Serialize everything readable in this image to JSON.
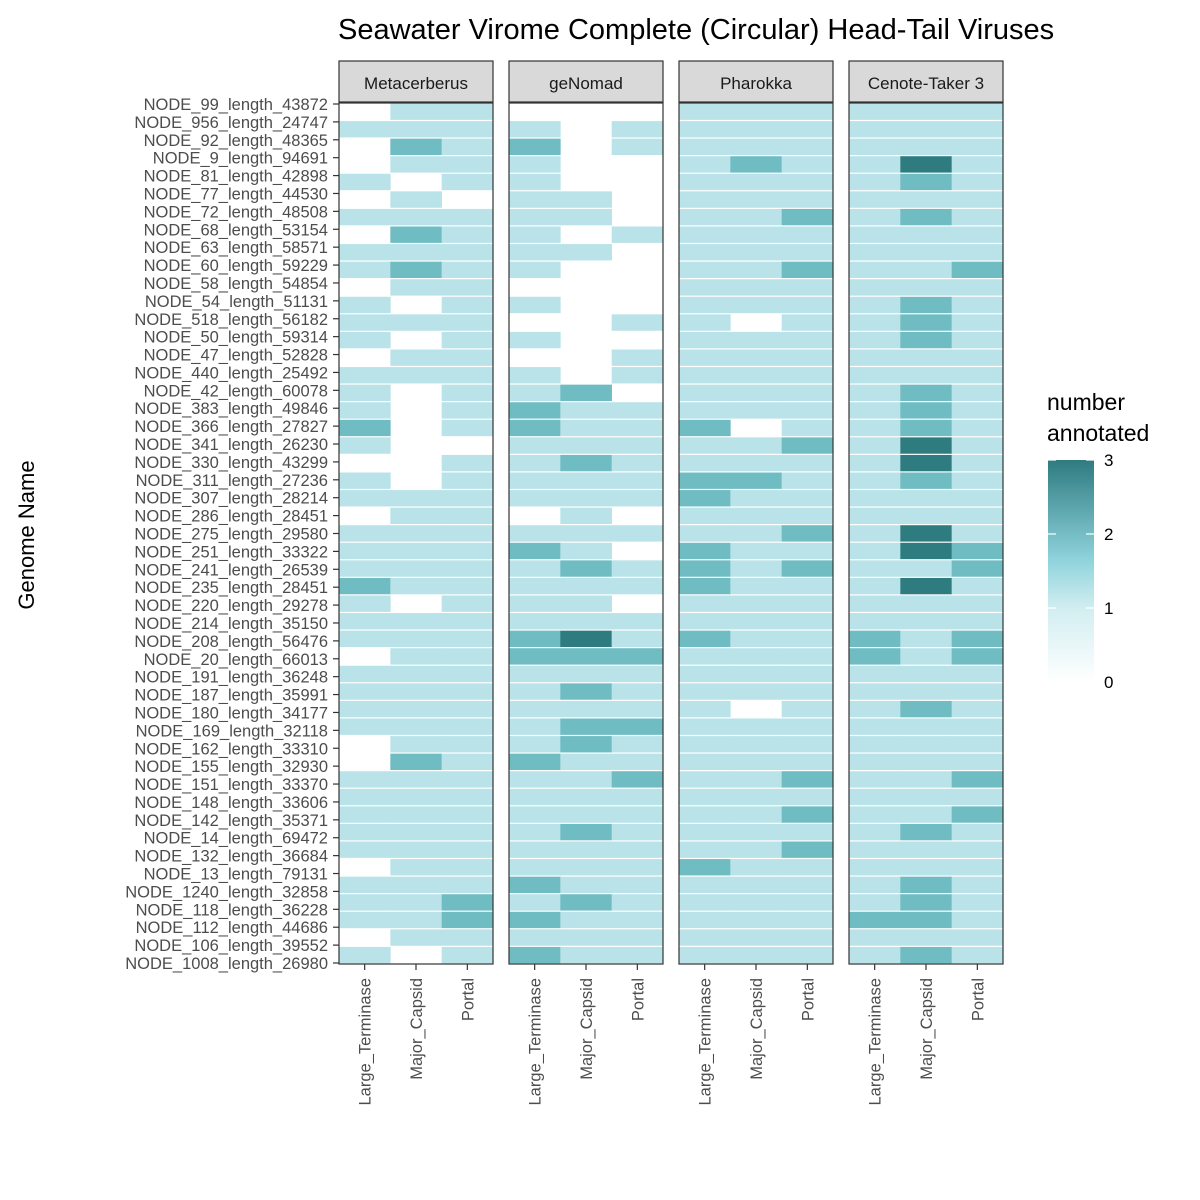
{
  "chart_data": {
    "type": "heatmap",
    "title": "Seawater Virome Complete (Circular) Head-Tail Viruses",
    "ylabel": "Genome Name",
    "xlabel": "",
    "panels": [
      "Metacerberus",
      "geNomad",
      "Pharokka",
      "Cenote-Taker 3"
    ],
    "columns": [
      "Large_Terminase",
      "Major_Capsid",
      "Portal"
    ],
    "rows": [
      "NODE_99_length_43872",
      "NODE_956_length_24747",
      "NODE_92_length_48365",
      "NODE_9_length_94691",
      "NODE_81_length_42898",
      "NODE_77_length_44530",
      "NODE_72_length_48508",
      "NODE_68_length_53154",
      "NODE_63_length_58571",
      "NODE_60_length_59229",
      "NODE_58_length_54854",
      "NODE_54_length_51131",
      "NODE_518_length_56182",
      "NODE_50_length_59314",
      "NODE_47_length_52828",
      "NODE_440_length_25492",
      "NODE_42_length_60078",
      "NODE_383_length_49846",
      "NODE_366_length_27827",
      "NODE_341_length_26230",
      "NODE_330_length_43299",
      "NODE_311_length_27236",
      "NODE_307_length_28214",
      "NODE_286_length_28451",
      "NODE_275_length_29580",
      "NODE_251_length_33322",
      "NODE_241_length_26539",
      "NODE_235_length_28451",
      "NODE_220_length_29278",
      "NODE_214_length_35150",
      "NODE_208_length_56476",
      "NODE_20_length_66013",
      "NODE_191_length_36248",
      "NODE_187_length_35991",
      "NODE_180_length_34177",
      "NODE_169_length_32118",
      "NODE_162_length_33310",
      "NODE_155_length_32930",
      "NODE_151_length_33370",
      "NODE_148_length_33606",
      "NODE_142_length_35371",
      "NODE_14_length_69472",
      "NODE_132_length_36684",
      "NODE_13_length_79131",
      "NODE_1240_length_32858",
      "NODE_118_length_36228",
      "NODE_112_length_44686",
      "NODE_106_length_39552",
      "NODE_1008_length_26980"
    ],
    "legend": {
      "title": "number annotated",
      "ticks": [
        0,
        1,
        2,
        3
      ],
      "low_color": "#ffffff",
      "mid_color": "#a6dce3",
      "high_color": "#2e7b80"
    },
    "values": {
      "Metacerberus": {
        "Large_Terminase": [
          0,
          1,
          0,
          0,
          1,
          0,
          1,
          0,
          1,
          1,
          0,
          1,
          1,
          1,
          0,
          1,
          1,
          1,
          2,
          1,
          0,
          1,
          1,
          0,
          1,
          1,
          1,
          2,
          1,
          1,
          1,
          0,
          1,
          1,
          1,
          1,
          0,
          0,
          1,
          1,
          1,
          1,
          1,
          0,
          1,
          1,
          1,
          0,
          1
        ],
        "Major_Capsid": [
          1,
          1,
          2,
          1,
          0,
          1,
          1,
          2,
          1,
          2,
          1,
          0,
          1,
          0,
          1,
          1,
          0,
          0,
          0,
          0,
          0,
          0,
          1,
          1,
          1,
          1,
          1,
          1,
          0,
          1,
          1,
          1,
          1,
          1,
          1,
          1,
          1,
          2,
          1,
          1,
          1,
          1,
          1,
          1,
          1,
          1,
          1,
          1,
          0
        ],
        "Portal": [
          1,
          1,
          1,
          1,
          1,
          0,
          1,
          1,
          1,
          1,
          1,
          1,
          1,
          1,
          1,
          1,
          1,
          1,
          1,
          0,
          1,
          1,
          1,
          1,
          1,
          1,
          1,
          1,
          1,
          1,
          1,
          1,
          1,
          1,
          1,
          1,
          1,
          1,
          1,
          1,
          1,
          1,
          1,
          1,
          1,
          2,
          2,
          1,
          1
        ]
      },
      "geNomad": {
        "Large_Terminase": [
          0,
          1,
          2,
          1,
          1,
          1,
          1,
          1,
          1,
          1,
          0,
          1,
          0,
          1,
          0,
          1,
          1,
          2,
          2,
          1,
          1,
          1,
          1,
          0,
          1,
          2,
          1,
          1,
          1,
          1,
          2,
          2,
          1,
          1,
          1,
          1,
          1,
          2,
          1,
          1,
          1,
          1,
          1,
          1,
          2,
          1,
          2,
          1,
          2
        ],
        "Major_Capsid": [
          0,
          0,
          0,
          0,
          0,
          1,
          1,
          0,
          1,
          0,
          0,
          0,
          0,
          0,
          0,
          0,
          2,
          1,
          1,
          1,
          2,
          1,
          1,
          1,
          1,
          1,
          2,
          1,
          1,
          1,
          3,
          2,
          1,
          2,
          1,
          2,
          2,
          1,
          1,
          1,
          1,
          2,
          1,
          1,
          1,
          2,
          1,
          1,
          1
        ],
        "Portal": [
          0,
          1,
          1,
          0,
          0,
          0,
          0,
          1,
          0,
          0,
          0,
          0,
          1,
          0,
          1,
          1,
          0,
          1,
          1,
          1,
          1,
          1,
          1,
          0,
          1,
          0,
          1,
          1,
          0,
          1,
          1,
          2,
          1,
          1,
          1,
          2,
          1,
          1,
          2,
          1,
          1,
          1,
          1,
          1,
          1,
          1,
          1,
          1,
          1
        ]
      },
      "Pharokka": {
        "Large_Terminase": [
          1,
          1,
          1,
          1,
          1,
          1,
          1,
          1,
          1,
          1,
          1,
          1,
          1,
          1,
          1,
          1,
          1,
          1,
          2,
          1,
          1,
          2,
          2,
          1,
          1,
          2,
          2,
          2,
          1,
          1,
          2,
          1,
          1,
          1,
          1,
          1,
          1,
          1,
          1,
          1,
          1,
          1,
          1,
          2,
          1,
          1,
          1,
          1,
          1
        ],
        "Major_Capsid": [
          1,
          1,
          1,
          2,
          1,
          1,
          1,
          1,
          1,
          1,
          1,
          1,
          0,
          1,
          1,
          1,
          1,
          1,
          0,
          1,
          1,
          2,
          1,
          1,
          1,
          1,
          1,
          1,
          1,
          1,
          1,
          1,
          1,
          1,
          0,
          1,
          1,
          1,
          1,
          1,
          1,
          1,
          1,
          1,
          1,
          1,
          1,
          1,
          1
        ],
        "Portal": [
          1,
          1,
          1,
          1,
          1,
          1,
          2,
          1,
          1,
          2,
          1,
          1,
          1,
          1,
          1,
          1,
          1,
          1,
          1,
          2,
          1,
          1,
          1,
          1,
          2,
          1,
          2,
          1,
          1,
          1,
          1,
          1,
          1,
          1,
          1,
          1,
          1,
          1,
          2,
          1,
          2,
          1,
          2,
          1,
          1,
          1,
          1,
          1,
          1
        ]
      },
      "Cenote-Taker 3": {
        "Large_Terminase": [
          1,
          1,
          1,
          1,
          1,
          1,
          1,
          1,
          1,
          1,
          1,
          1,
          1,
          1,
          1,
          1,
          1,
          1,
          1,
          1,
          1,
          1,
          1,
          1,
          1,
          1,
          1,
          1,
          1,
          1,
          2,
          2,
          1,
          1,
          1,
          1,
          1,
          1,
          1,
          1,
          1,
          1,
          1,
          1,
          1,
          1,
          2,
          1,
          1
        ],
        "Major_Capsid": [
          1,
          1,
          1,
          3,
          2,
          1,
          2,
          1,
          1,
          1,
          1,
          2,
          2,
          2,
          1,
          1,
          2,
          2,
          2,
          3,
          3,
          2,
          1,
          1,
          3,
          3,
          1,
          3,
          1,
          1,
          1,
          1,
          1,
          1,
          2,
          1,
          1,
          1,
          1,
          1,
          1,
          2,
          1,
          1,
          2,
          2,
          2,
          1,
          2
        ],
        "Portal": [
          1,
          1,
          1,
          1,
          1,
          1,
          1,
          1,
          1,
          2,
          1,
          1,
          1,
          1,
          1,
          1,
          1,
          1,
          1,
          1,
          1,
          1,
          1,
          1,
          1,
          2,
          2,
          1,
          1,
          1,
          2,
          2,
          1,
          1,
          1,
          1,
          1,
          1,
          2,
          1,
          2,
          1,
          1,
          1,
          1,
          1,
          1,
          1,
          1
        ]
      }
    }
  }
}
